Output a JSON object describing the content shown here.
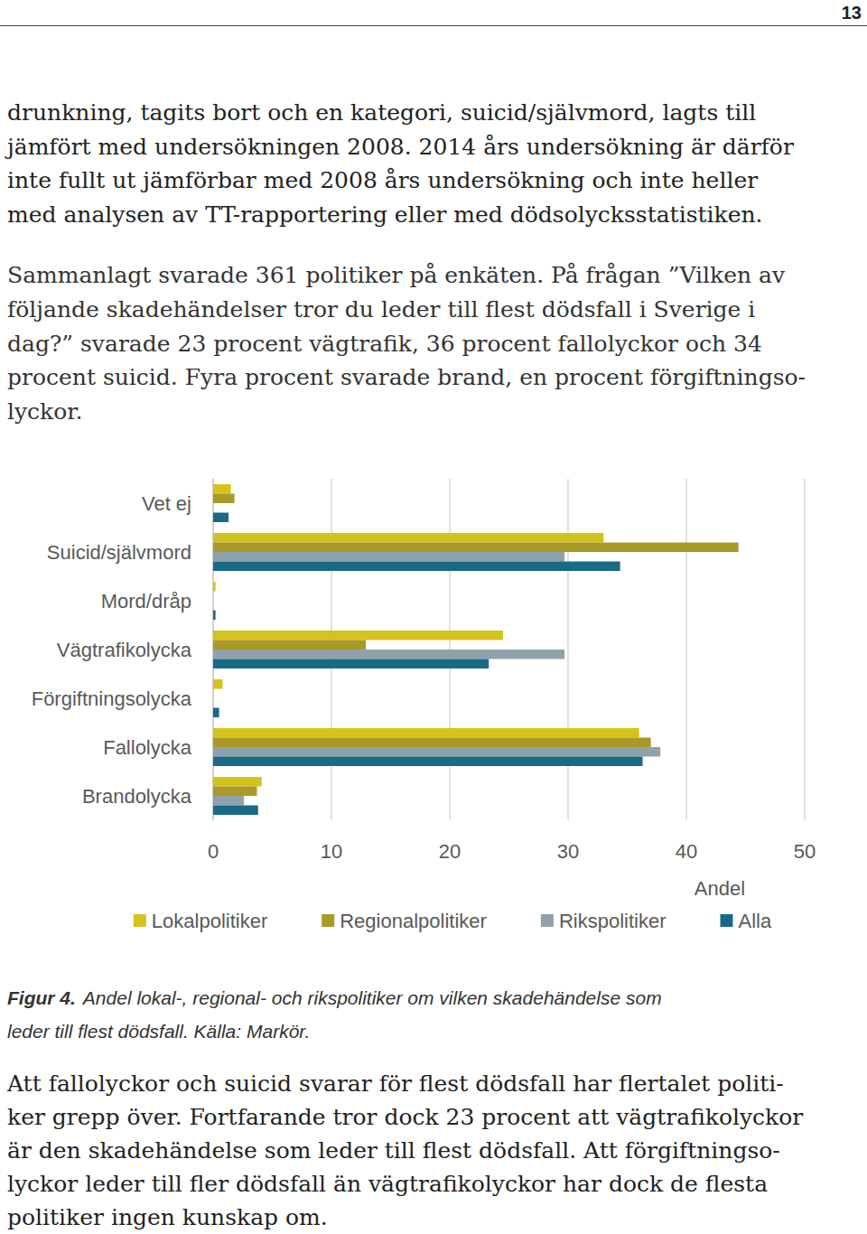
{
  "page_number": "13",
  "paragraphs": [
    [
      "drunkning, tagits bort och en kategori, suicid/självmord, lagts till",
      "jämfört med undersökningen 2008. 2014 års undersökning är därför",
      "inte fullt ut jämförbar med 2008 års undersökning och inte heller",
      "med analysen av TT-rapportering eller med dödsolycksstatistiken."
    ],
    [
      "Sammanlagt svarade 361 politiker på enkäten. På frågan ”Vilken av",
      "följande skadehändelser tror du leder till flest dödsfall i Sverige i",
      "dag?” svarade 23 procent vägtrafik, 36 procent fallolyckor och 34",
      "procent suicid. Fyra procent svarade brand, en procent förgiftningso-",
      "lyckor."
    ]
  ],
  "chart_data": {
    "type": "bar",
    "orientation": "horizontal",
    "categories": [
      "Vet ej",
      "Suicid/självmord",
      "Mord/dråp",
      "Vägtrafikolycka",
      "Förgiftningsolycka",
      "Fallolycka",
      "Brandolycka"
    ],
    "series": [
      {
        "name": "Lokalpolitiker",
        "color": "#d4c31c",
        "values": [
          1.5,
          33.0,
          0.2,
          24.5,
          0.8,
          36.0,
          4.1
        ]
      },
      {
        "name": "Regionalpolitiker",
        "color": "#a99a28",
        "values": [
          1.8,
          44.4,
          0,
          12.9,
          0,
          37.0,
          3.7
        ]
      },
      {
        "name": "Rikspolitiker",
        "color": "#8fa2ab",
        "values": [
          0,
          29.7,
          0,
          29.7,
          0,
          37.8,
          2.6
        ]
      },
      {
        "name": "Alla",
        "color": "#186a86",
        "values": [
          1.3,
          34.4,
          0.2,
          23.3,
          0.5,
          36.3,
          3.8
        ]
      }
    ],
    "x_label": "Andel",
    "xlim": [
      0,
      50
    ],
    "xticks": [
      0,
      10,
      20,
      30,
      40,
      50
    ],
    "grid": true,
    "legend": "bottom"
  },
  "caption": {
    "label": "Figur 4.",
    "lines": [
      "Andel lokal-, regional- och rikspolitiker om vilken skadehändelse som",
      "leder till flest dödsfall. Källa: Markör."
    ]
  },
  "closing_paragraph": [
    "Att fallolyckor och suicid svarar för flest dödsfall har flertalet politi-",
    "ker grepp över. Fortfarande tror dock 23 procent att vägtrafikolyckor",
    "är den skadehändelse som leder till flest dödsfall. Att förgiftningso-",
    "lyckor leder till fler dödsfall än vägtrafikolyckor har dock de flesta",
    "politiker ingen kunskap om."
  ]
}
